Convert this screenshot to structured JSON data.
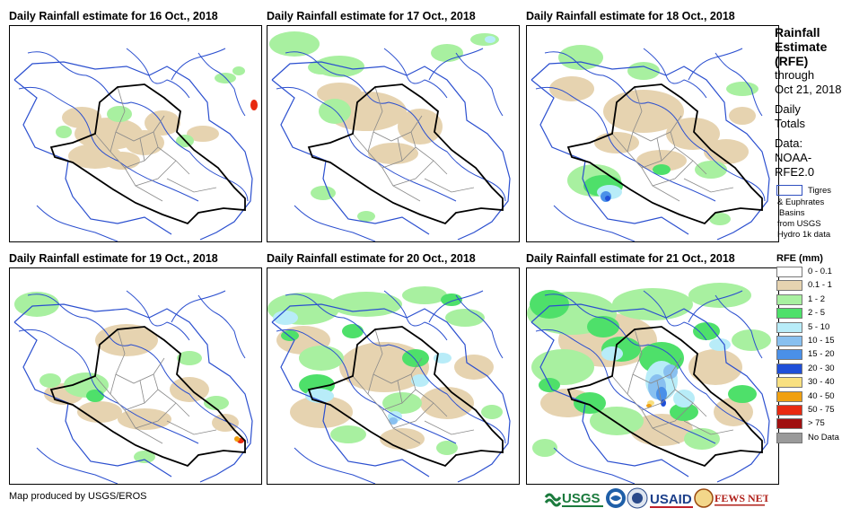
{
  "panels": [
    {
      "title": "Daily Rainfall estimate for 16 Oct., 2018"
    },
    {
      "title": "Daily Rainfall estimate for 17 Oct., 2018"
    },
    {
      "title": "Daily Rainfall estimate for 18 Oct., 2018"
    },
    {
      "title": "Daily Rainfall estimate for 19 Oct., 2018"
    },
    {
      "title": "Daily Rainfall estimate for 20 Oct., 2018"
    },
    {
      "title": "Daily Rainfall estimate for 21 Oct., 2018"
    }
  ],
  "legend": {
    "title_lines": [
      "Rainfall",
      "Estimate",
      "(RFE)"
    ],
    "through": "through",
    "date": "Oct 21, 2018",
    "daily": "Daily",
    "totals": "Totals",
    "data_label": "Data:",
    "data_source_1": "NOAA-",
    "data_source_2": "RFE2.0",
    "basin_label": "Tigres",
    "basin_lines": [
      "& Euphrates",
      "Basins",
      "from USGS",
      "Hydro 1k data"
    ],
    "rfe_title": "RFE (mm)",
    "classes": [
      {
        "label": "0 - 0.1",
        "color": "#ffffff"
      },
      {
        "label": "0.1 - 1",
        "color": "#e6d3b0"
      },
      {
        "label": "1 - 2",
        "color": "#a8f0a0"
      },
      {
        "label": "2 - 5",
        "color": "#4ee06a"
      },
      {
        "label": "5 - 10",
        "color": "#b8ecf8"
      },
      {
        "label": "10 - 15",
        "color": "#88c0f0"
      },
      {
        "label": "15 - 20",
        "color": "#4a90e8"
      },
      {
        "label": "20 - 30",
        "color": "#1f4fd8"
      },
      {
        "label": "30 - 40",
        "color": "#f8e080"
      },
      {
        "label": "40 - 50",
        "color": "#f0a010"
      },
      {
        "label": "50 - 75",
        "color": "#e82a10"
      },
      {
        "label": "> 75",
        "color": "#a01010"
      },
      {
        "label": "No Data",
        "color": "#9a9a9a"
      }
    ]
  },
  "credit": "Map produced by USGS/EROS",
  "logos": {
    "usgs": "USGS",
    "usaid": "USAID",
    "fewsnet": "FEWS NET"
  }
}
